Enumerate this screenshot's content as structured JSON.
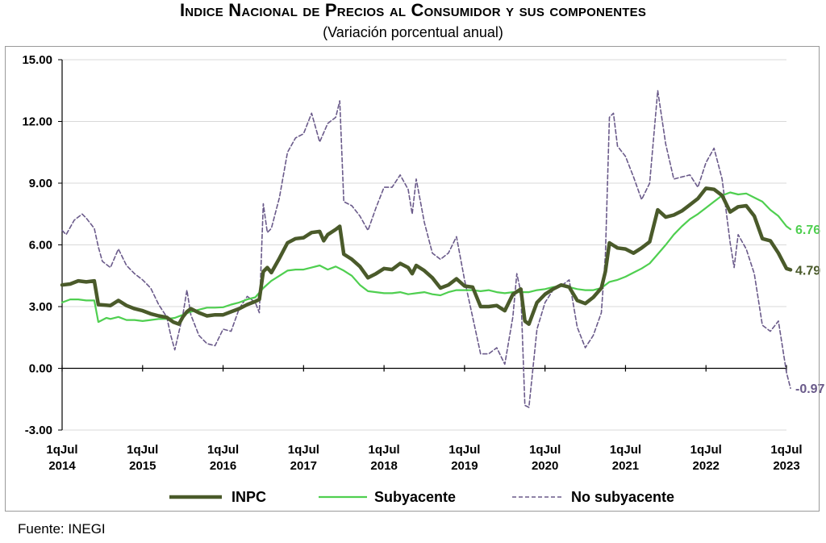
{
  "header": {
    "title": "Indice Nacional de Precios al Consumidor y sus componentes",
    "subtitle": "(Variación porcentual anual)"
  },
  "footer": {
    "source": "Fuente: INEGI"
  },
  "colors": {
    "inpc": "#4a5a2a",
    "subyacente": "#4fcf50",
    "no_subyacente": "#6a5a8a",
    "axis": "#000000",
    "grid": "#d9d9d9"
  },
  "chart_data": {
    "type": "line",
    "x_unit": "quincena (biweekly), July 2014 – July 2023",
    "ylim": [
      -3,
      15
    ],
    "yticks": [
      "15.00",
      "12.00",
      "9.00",
      "6.00",
      "3.00",
      "0.00",
      "-3.00"
    ],
    "ytick_values": [
      15,
      12,
      9,
      6,
      3,
      0,
      -3
    ],
    "xticks": [
      {
        "top": "1qJul",
        "bottom": "2014",
        "x": 0
      },
      {
        "top": "1qJul",
        "bottom": "2015",
        "x": 1
      },
      {
        "top": "1qJul",
        "bottom": "2016",
        "x": 2
      },
      {
        "top": "1qJul",
        "bottom": "2017",
        "x": 3
      },
      {
        "top": "1qJul",
        "bottom": "2018",
        "x": 4
      },
      {
        "top": "1qJul",
        "bottom": "2019",
        "x": 5
      },
      {
        "top": "1qJul",
        "bottom": "2020",
        "x": 6
      },
      {
        "top": "1qJul",
        "bottom": "2021",
        "x": 7
      },
      {
        "top": "1qJul",
        "bottom": "2022",
        "x": 8
      },
      {
        "top": "1qJul",
        "bottom": "2023",
        "x": 9
      }
    ],
    "grid": "horizontal",
    "legend_position": "bottom",
    "series": [
      {
        "name": "INPC",
        "end_label": "4.79",
        "points": [
          [
            0,
            4.05
          ],
          [
            0.1,
            4.1
          ],
          [
            0.2,
            4.25
          ],
          [
            0.3,
            4.2
          ],
          [
            0.4,
            4.25
          ],
          [
            0.45,
            3.1
          ],
          [
            0.6,
            3.05
          ],
          [
            0.7,
            3.3
          ],
          [
            0.8,
            3.05
          ],
          [
            0.9,
            2.9
          ],
          [
            1.0,
            2.8
          ],
          [
            1.1,
            2.65
          ],
          [
            1.2,
            2.55
          ],
          [
            1.3,
            2.48
          ],
          [
            1.38,
            2.25
          ],
          [
            1.45,
            2.15
          ],
          [
            1.5,
            2.5
          ],
          [
            1.55,
            2.75
          ],
          [
            1.6,
            2.9
          ],
          [
            1.7,
            2.7
          ],
          [
            1.8,
            2.55
          ],
          [
            1.9,
            2.6
          ],
          [
            2.0,
            2.6
          ],
          [
            2.1,
            2.75
          ],
          [
            2.2,
            2.9
          ],
          [
            2.3,
            3.1
          ],
          [
            2.4,
            3.25
          ],
          [
            2.45,
            3.35
          ],
          [
            2.5,
            4.7
          ],
          [
            2.55,
            4.9
          ],
          [
            2.6,
            4.65
          ],
          [
            2.7,
            5.35
          ],
          [
            2.8,
            6.1
          ],
          [
            2.9,
            6.3
          ],
          [
            3.0,
            6.35
          ],
          [
            3.1,
            6.6
          ],
          [
            3.2,
            6.65
          ],
          [
            3.25,
            6.2
          ],
          [
            3.3,
            6.5
          ],
          [
            3.4,
            6.75
          ],
          [
            3.45,
            6.9
          ],
          [
            3.5,
            5.55
          ],
          [
            3.6,
            5.3
          ],
          [
            3.7,
            4.95
          ],
          [
            3.8,
            4.4
          ],
          [
            3.9,
            4.6
          ],
          [
            4.0,
            4.85
          ],
          [
            4.1,
            4.8
          ],
          [
            4.2,
            5.1
          ],
          [
            4.3,
            4.9
          ],
          [
            4.35,
            4.6
          ],
          [
            4.4,
            5.0
          ],
          [
            4.5,
            4.75
          ],
          [
            4.6,
            4.4
          ],
          [
            4.7,
            3.9
          ],
          [
            4.8,
            4.05
          ],
          [
            4.9,
            4.35
          ],
          [
            5.0,
            4.0
          ],
          [
            5.1,
            3.95
          ],
          [
            5.2,
            3.0
          ],
          [
            5.3,
            3.0
          ],
          [
            5.4,
            3.05
          ],
          [
            5.5,
            2.8
          ],
          [
            5.6,
            3.6
          ],
          [
            5.7,
            3.85
          ],
          [
            5.75,
            2.3
          ],
          [
            5.8,
            2.15
          ],
          [
            5.9,
            3.2
          ],
          [
            6.0,
            3.6
          ],
          [
            6.1,
            3.85
          ],
          [
            6.2,
            4.05
          ],
          [
            6.3,
            3.95
          ],
          [
            6.4,
            3.3
          ],
          [
            6.5,
            3.15
          ],
          [
            6.6,
            3.45
          ],
          [
            6.7,
            3.9
          ],
          [
            6.75,
            4.7
          ],
          [
            6.8,
            6.1
          ],
          [
            6.9,
            5.85
          ],
          [
            7.0,
            5.8
          ],
          [
            7.1,
            5.6
          ],
          [
            7.2,
            5.85
          ],
          [
            7.3,
            6.15
          ],
          [
            7.4,
            7.7
          ],
          [
            7.5,
            7.35
          ],
          [
            7.6,
            7.45
          ],
          [
            7.7,
            7.65
          ],
          [
            7.8,
            7.95
          ],
          [
            7.9,
            8.25
          ],
          [
            8.0,
            8.75
          ],
          [
            8.1,
            8.7
          ],
          [
            8.2,
            8.4
          ],
          [
            8.3,
            7.6
          ],
          [
            8.4,
            7.85
          ],
          [
            8.5,
            7.9
          ],
          [
            8.6,
            7.4
          ],
          [
            8.7,
            6.3
          ],
          [
            8.8,
            6.2
          ],
          [
            8.9,
            5.6
          ],
          [
            9.0,
            4.85
          ],
          [
            9.05,
            4.79
          ]
        ]
      },
      {
        "name": "Subyacente",
        "end_label": "6.76",
        "points": [
          [
            0,
            3.2
          ],
          [
            0.1,
            3.35
          ],
          [
            0.2,
            3.35
          ],
          [
            0.3,
            3.3
          ],
          [
            0.4,
            3.3
          ],
          [
            0.45,
            2.25
          ],
          [
            0.55,
            2.45
          ],
          [
            0.6,
            2.4
          ],
          [
            0.7,
            2.5
          ],
          [
            0.8,
            2.35
          ],
          [
            0.9,
            2.35
          ],
          [
            1.0,
            2.3
          ],
          [
            1.1,
            2.35
          ],
          [
            1.2,
            2.4
          ],
          [
            1.3,
            2.4
          ],
          [
            1.4,
            2.45
          ],
          [
            1.5,
            2.6
          ],
          [
            1.6,
            2.75
          ],
          [
            1.7,
            2.85
          ],
          [
            1.8,
            2.95
          ],
          [
            1.9,
            2.95
          ],
          [
            2.0,
            2.97
          ],
          [
            2.1,
            3.1
          ],
          [
            2.2,
            3.2
          ],
          [
            2.3,
            3.35
          ],
          [
            2.4,
            3.45
          ],
          [
            2.5,
            3.9
          ],
          [
            2.6,
            4.25
          ],
          [
            2.7,
            4.5
          ],
          [
            2.8,
            4.75
          ],
          [
            2.9,
            4.8
          ],
          [
            3.0,
            4.8
          ],
          [
            3.1,
            4.9
          ],
          [
            3.2,
            5.0
          ],
          [
            3.3,
            4.8
          ],
          [
            3.4,
            4.95
          ],
          [
            3.5,
            4.75
          ],
          [
            3.6,
            4.5
          ],
          [
            3.7,
            4.05
          ],
          [
            3.8,
            3.75
          ],
          [
            3.9,
            3.7
          ],
          [
            4.0,
            3.65
          ],
          [
            4.1,
            3.65
          ],
          [
            4.2,
            3.7
          ],
          [
            4.3,
            3.6
          ],
          [
            4.4,
            3.65
          ],
          [
            4.5,
            3.7
          ],
          [
            4.6,
            3.6
          ],
          [
            4.7,
            3.55
          ],
          [
            4.8,
            3.7
          ],
          [
            4.9,
            3.8
          ],
          [
            5.0,
            3.8
          ],
          [
            5.1,
            3.8
          ],
          [
            5.2,
            3.75
          ],
          [
            5.3,
            3.8
          ],
          [
            5.4,
            3.7
          ],
          [
            5.5,
            3.65
          ],
          [
            5.6,
            3.7
          ],
          [
            5.7,
            3.7
          ],
          [
            5.8,
            3.7
          ],
          [
            5.9,
            3.8
          ],
          [
            6.0,
            3.85
          ],
          [
            6.1,
            3.95
          ],
          [
            6.2,
            4.0
          ],
          [
            6.3,
            3.95
          ],
          [
            6.4,
            3.85
          ],
          [
            6.5,
            3.8
          ],
          [
            6.6,
            3.8
          ],
          [
            6.7,
            3.9
          ],
          [
            6.8,
            4.2
          ],
          [
            6.9,
            4.3
          ],
          [
            7.0,
            4.45
          ],
          [
            7.1,
            4.65
          ],
          [
            7.2,
            4.85
          ],
          [
            7.3,
            5.1
          ],
          [
            7.4,
            5.55
          ],
          [
            7.5,
            6.0
          ],
          [
            7.6,
            6.5
          ],
          [
            7.7,
            6.9
          ],
          [
            7.8,
            7.25
          ],
          [
            7.9,
            7.5
          ],
          [
            8.0,
            7.8
          ],
          [
            8.1,
            8.1
          ],
          [
            8.2,
            8.4
          ],
          [
            8.3,
            8.55
          ],
          [
            8.4,
            8.45
          ],
          [
            8.5,
            8.5
          ],
          [
            8.6,
            8.3
          ],
          [
            8.7,
            8.1
          ],
          [
            8.8,
            7.7
          ],
          [
            8.9,
            7.4
          ],
          [
            9.0,
            6.9
          ],
          [
            9.05,
            6.76
          ]
        ]
      },
      {
        "name": "No subyacente",
        "end_label": "-0.97",
        "points": [
          [
            0,
            6.7
          ],
          [
            0.05,
            6.5
          ],
          [
            0.15,
            7.2
          ],
          [
            0.25,
            7.5
          ],
          [
            0.3,
            7.3
          ],
          [
            0.4,
            6.8
          ],
          [
            0.45,
            5.9
          ],
          [
            0.5,
            5.2
          ],
          [
            0.6,
            4.9
          ],
          [
            0.7,
            5.8
          ],
          [
            0.8,
            5.0
          ],
          [
            0.9,
            4.6
          ],
          [
            1.0,
            4.3
          ],
          [
            1.1,
            3.9
          ],
          [
            1.2,
            3.1
          ],
          [
            1.3,
            2.5
          ],
          [
            1.35,
            1.6
          ],
          [
            1.4,
            0.9
          ],
          [
            1.5,
            2.6
          ],
          [
            1.55,
            3.8
          ],
          [
            1.6,
            2.6
          ],
          [
            1.7,
            1.6
          ],
          [
            1.8,
            1.2
          ],
          [
            1.9,
            1.1
          ],
          [
            2.0,
            1.9
          ],
          [
            2.1,
            1.8
          ],
          [
            2.2,
            2.9
          ],
          [
            2.3,
            3.5
          ],
          [
            2.4,
            3.2
          ],
          [
            2.45,
            2.7
          ],
          [
            2.5,
            8.0
          ],
          [
            2.55,
            6.6
          ],
          [
            2.6,
            6.8
          ],
          [
            2.7,
            8.3
          ],
          [
            2.8,
            10.5
          ],
          [
            2.9,
            11.2
          ],
          [
            3.0,
            11.4
          ],
          [
            3.1,
            12.4
          ],
          [
            3.2,
            11.0
          ],
          [
            3.3,
            11.9
          ],
          [
            3.4,
            12.2
          ],
          [
            3.45,
            13.0
          ],
          [
            3.5,
            8.1
          ],
          [
            3.6,
            7.9
          ],
          [
            3.7,
            7.4
          ],
          [
            3.8,
            6.7
          ],
          [
            3.9,
            7.8
          ],
          [
            4.0,
            8.8
          ],
          [
            4.1,
            8.8
          ],
          [
            4.2,
            9.4
          ],
          [
            4.3,
            8.7
          ],
          [
            4.35,
            7.5
          ],
          [
            4.4,
            9.2
          ],
          [
            4.5,
            7.1
          ],
          [
            4.6,
            5.6
          ],
          [
            4.7,
            5.3
          ],
          [
            4.8,
            5.6
          ],
          [
            4.9,
            6.4
          ],
          [
            5.0,
            4.3
          ],
          [
            5.1,
            2.5
          ],
          [
            5.2,
            0.7
          ],
          [
            5.3,
            0.7
          ],
          [
            5.4,
            1.0
          ],
          [
            5.5,
            0.2
          ],
          [
            5.6,
            2.5
          ],
          [
            5.65,
            4.6
          ],
          [
            5.7,
            3.7
          ],
          [
            5.75,
            -1.8
          ],
          [
            5.8,
            -1.9
          ],
          [
            5.9,
            1.9
          ],
          [
            6.0,
            3.2
          ],
          [
            6.1,
            3.8
          ],
          [
            6.2,
            4.0
          ],
          [
            6.3,
            4.3
          ],
          [
            6.4,
            2.0
          ],
          [
            6.5,
            1.0
          ],
          [
            6.6,
            1.6
          ],
          [
            6.7,
            2.7
          ],
          [
            6.75,
            5.5
          ],
          [
            6.8,
            12.2
          ],
          [
            6.85,
            12.4
          ],
          [
            6.9,
            10.8
          ],
          [
            7.0,
            10.3
          ],
          [
            7.1,
            9.3
          ],
          [
            7.2,
            8.2
          ],
          [
            7.3,
            9.0
          ],
          [
            7.4,
            13.5
          ],
          [
            7.5,
            10.9
          ],
          [
            7.6,
            9.2
          ],
          [
            7.7,
            9.3
          ],
          [
            7.8,
            9.4
          ],
          [
            7.9,
            8.8
          ],
          [
            8.0,
            10.0
          ],
          [
            8.1,
            10.7
          ],
          [
            8.2,
            9.2
          ],
          [
            8.3,
            6.1
          ],
          [
            8.35,
            4.9
          ],
          [
            8.4,
            6.5
          ],
          [
            8.5,
            5.8
          ],
          [
            8.6,
            4.6
          ],
          [
            8.7,
            2.1
          ],
          [
            8.8,
            1.8
          ],
          [
            8.9,
            2.3
          ],
          [
            9.0,
            -0.2
          ],
          [
            9.05,
            -0.97
          ]
        ]
      }
    ]
  },
  "legend": {
    "items": [
      "INPC",
      "Subyacente",
      "No subyacente"
    ]
  }
}
